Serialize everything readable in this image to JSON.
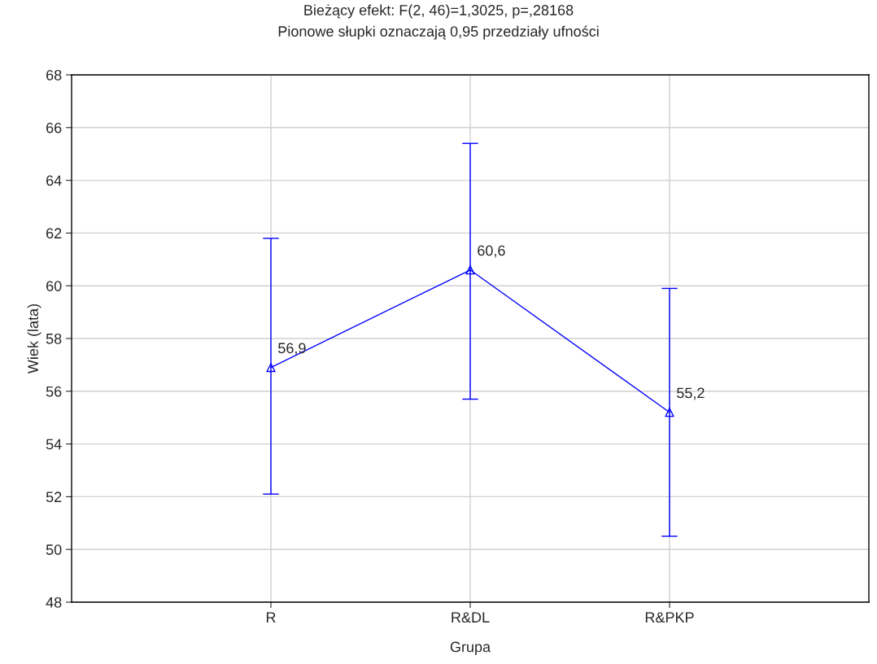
{
  "chart_data": {
    "type": "line",
    "title": "Bieżący efekt: F(2, 46)=1,3025, p=,28168",
    "subtitle": "Pionowe słupki oznaczają 0,95 przedziały ufności",
    "xlabel": "Grupa",
    "ylabel": "Wiek (lata)",
    "categories": [
      "R",
      "R&DL",
      "R&PKP"
    ],
    "series": [
      {
        "color": "#0000ff",
        "values": [
          56.9,
          60.6,
          55.2
        ],
        "errors": [
          [
            52.1,
            61.8
          ],
          [
            55.7,
            65.4
          ],
          [
            50.5,
            59.9
          ]
        ],
        "value_labels": [
          "56,9",
          "60,6",
          "55,2"
        ]
      }
    ],
    "ylim": [
      48,
      68
    ],
    "yticks": [
      48,
      50,
      52,
      54,
      56,
      58,
      60,
      62,
      64,
      66,
      68
    ],
    "grid": true,
    "marker": "triangle",
    "line_style": "solid"
  }
}
